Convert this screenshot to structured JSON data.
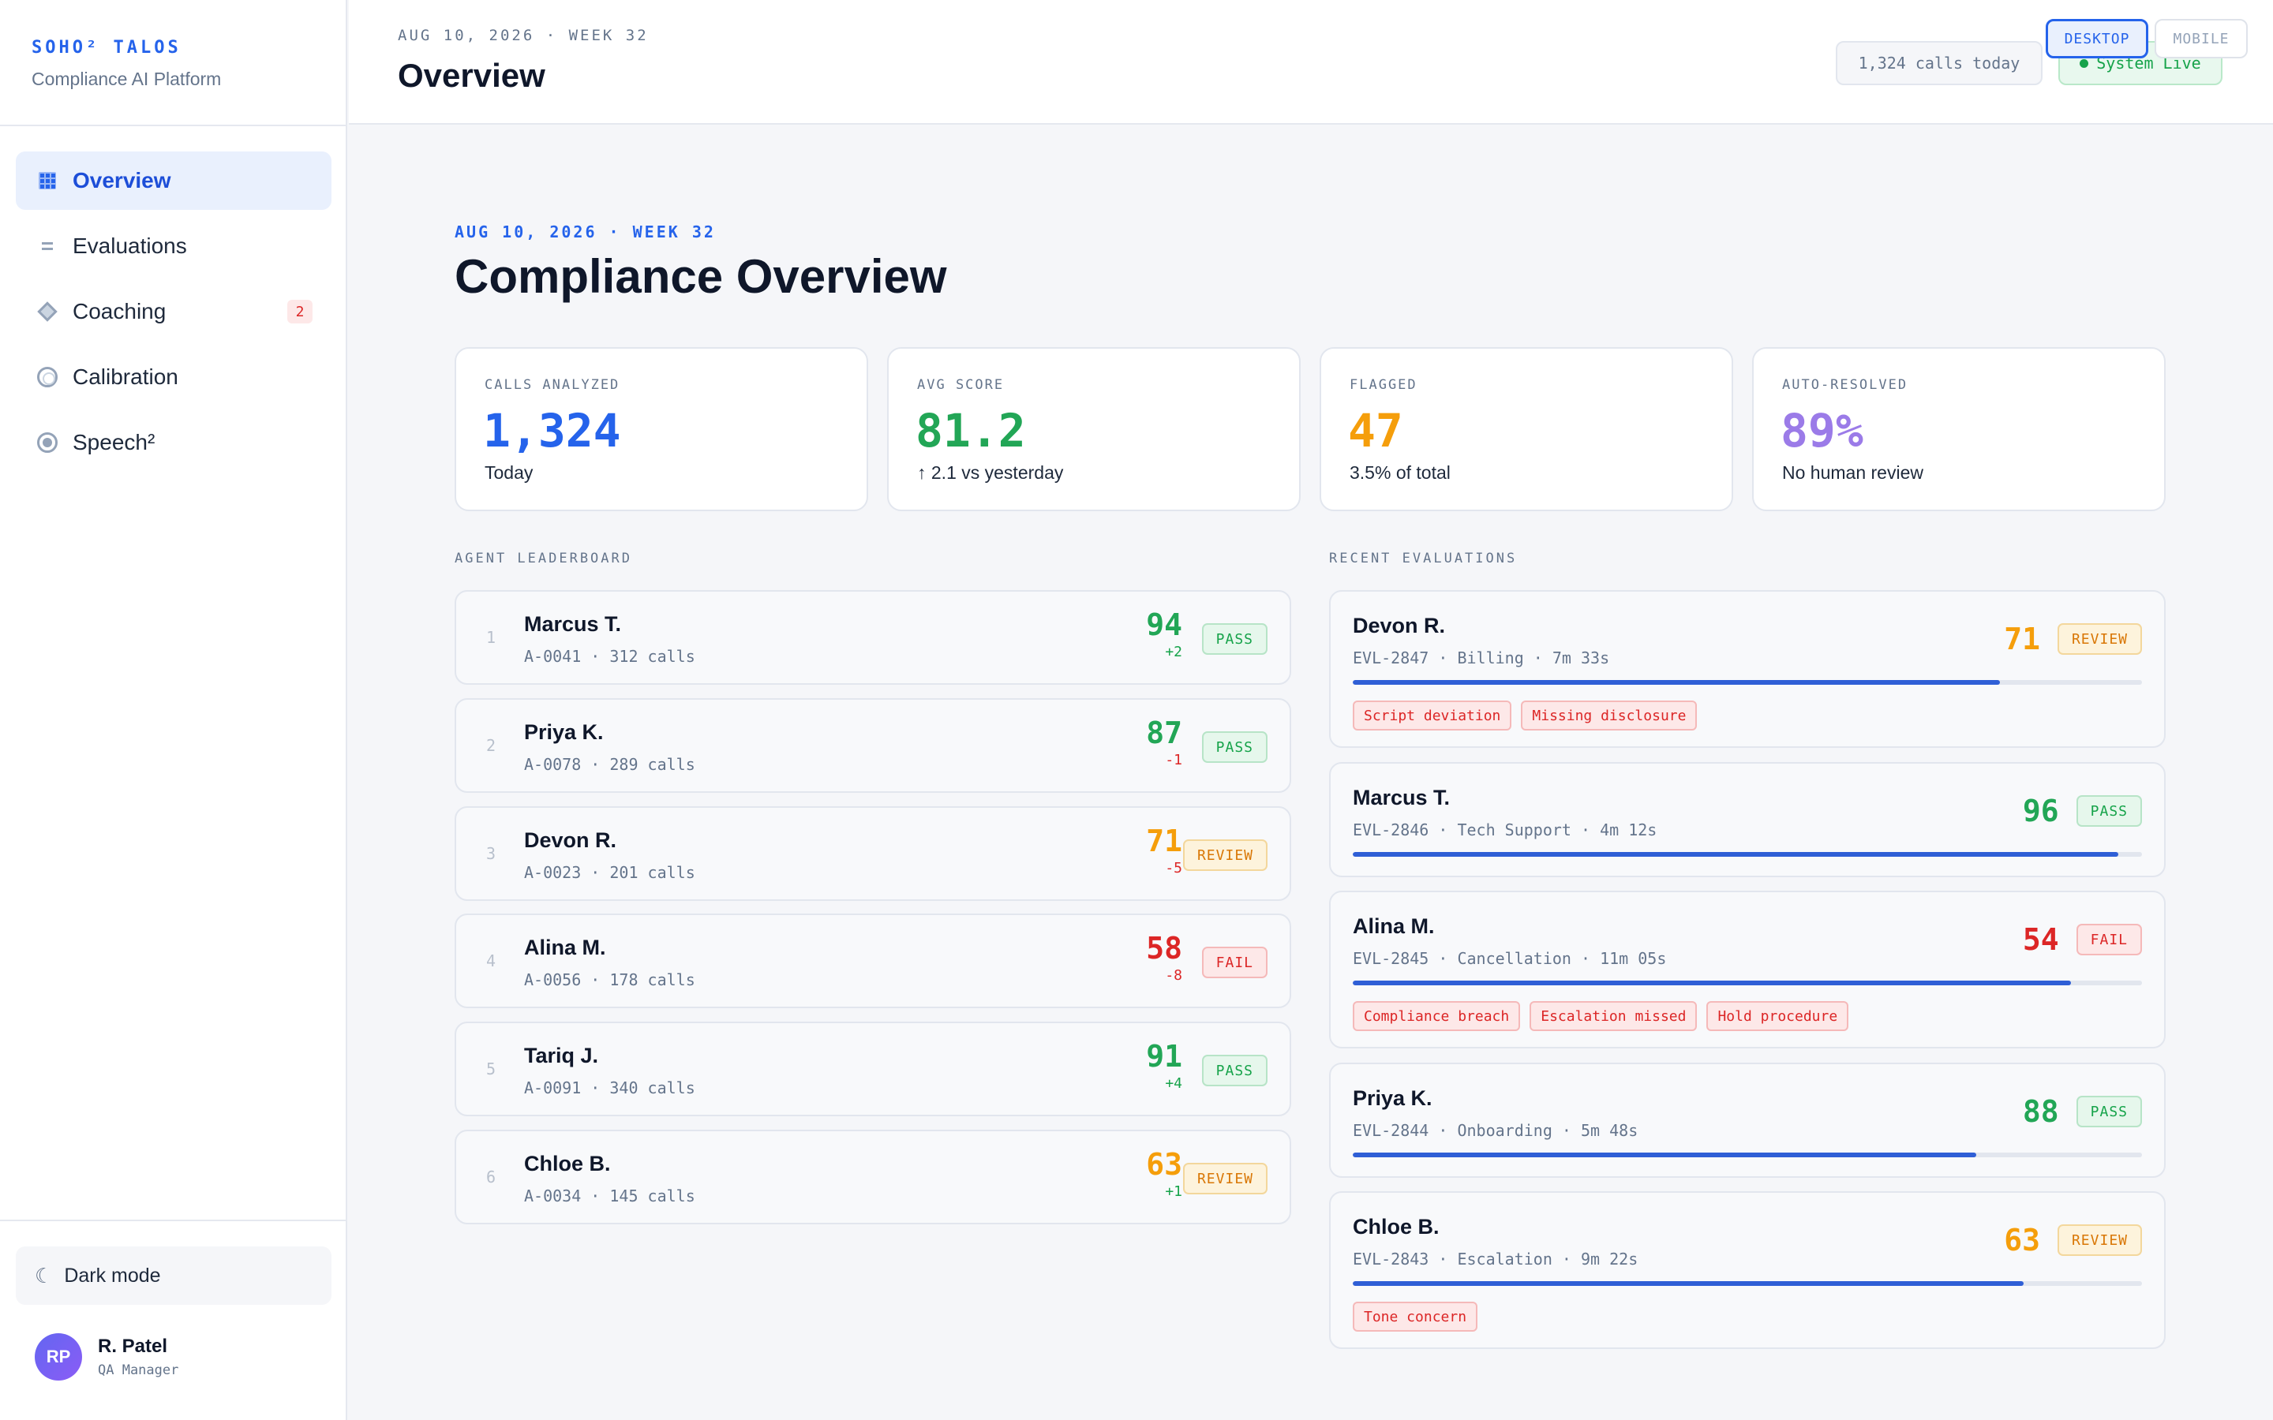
{
  "brand": {
    "name": "SOHO² TALOS",
    "subtitle": "Compliance AI Platform"
  },
  "sidebar": {
    "items": [
      {
        "label": "Overview",
        "icon": "grid-icon",
        "active": true
      },
      {
        "label": "Evaluations",
        "icon": "list-icon"
      },
      {
        "label": "Coaching",
        "icon": "diamond-icon",
        "badge": "2"
      },
      {
        "label": "Calibration",
        "icon": "ring-icon"
      },
      {
        "label": "Speech²",
        "icon": "dot-circle-icon"
      }
    ],
    "dark_mode_label": "Dark mode",
    "dark_mode_icon": "moon-icon",
    "user": {
      "initials": "RP",
      "name": "R. Patel",
      "role": "QA Manager"
    }
  },
  "header": {
    "date": "AUG 10, 2026 · WEEK 32",
    "title": "Overview",
    "calls_today": "1,324 calls today",
    "status": "System Live",
    "view_toggle": {
      "desktop": "DESKTOP",
      "mobile": "MOBILE",
      "selected": "DESKTOP"
    }
  },
  "main": {
    "date": "AUG 10, 2026 · WEEK 32",
    "title": "Compliance Overview",
    "stats": [
      {
        "label": "CALLS ANALYZED",
        "value": "1,324",
        "sub": "Today",
        "color": "#2563eb"
      },
      {
        "label": "AVG SCORE",
        "value": "81.2",
        "sub": "↑ 2.1 vs yesterday",
        "color": "#22a656"
      },
      {
        "label": "FLAGGED",
        "value": "47",
        "sub": "3.5% of total",
        "color": "#f59e0b"
      },
      {
        "label": "AUTO-RESOLVED",
        "value": "89%",
        "sub": "No human review",
        "color": "#9b7be8"
      }
    ],
    "leaderboard_label": "AGENT LEADERBOARD",
    "leaderboard": [
      {
        "rank": "1",
        "name": "Marcus T.",
        "meta": "A-0041 · 312 calls",
        "score": "94",
        "delta": "+2",
        "status": "PASS"
      },
      {
        "rank": "2",
        "name": "Priya K.",
        "meta": "A-0078 · 289 calls",
        "score": "87",
        "delta": "-1",
        "status": "PASS"
      },
      {
        "rank": "3",
        "name": "Devon R.",
        "meta": "A-0023 · 201 calls",
        "score": "71",
        "delta": "-5",
        "status": "REVIEW"
      },
      {
        "rank": "4",
        "name": "Alina M.",
        "meta": "A-0056 · 178 calls",
        "score": "58",
        "delta": "-8",
        "status": "FAIL"
      },
      {
        "rank": "5",
        "name": "Tariq J.",
        "meta": "A-0091 · 340 calls",
        "score": "91",
        "delta": "+4",
        "status": "PASS"
      },
      {
        "rank": "6",
        "name": "Chloe B.",
        "meta": "A-0034 · 145 calls",
        "score": "63",
        "delta": "+1",
        "status": "REVIEW"
      }
    ],
    "evaluations_label": "RECENT EVALUATIONS",
    "evaluations": [
      {
        "name": "Devon R.",
        "meta": "EVL-2847 · Billing · 7m 33s",
        "score": "71",
        "status": "REVIEW",
        "progress": 0.82,
        "tags": [
          "Script deviation",
          "Missing disclosure"
        ]
      },
      {
        "name": "Marcus T.",
        "meta": "EVL-2846 · Tech Support · 4m 12s",
        "score": "96",
        "status": "PASS",
        "progress": 0.97,
        "tags": []
      },
      {
        "name": "Alina M.",
        "meta": "EVL-2845 · Cancellation · 11m 05s",
        "score": "54",
        "status": "FAIL",
        "progress": 0.91,
        "tags": [
          "Compliance breach",
          "Escalation missed",
          "Hold procedure"
        ]
      },
      {
        "name": "Priya K.",
        "meta": "EVL-2844 · Onboarding · 5m 48s",
        "score": "88",
        "status": "PASS",
        "progress": 0.79,
        "tags": []
      },
      {
        "name": "Chloe B.",
        "meta": "EVL-2843 · Escalation · 9m 22s",
        "score": "63",
        "status": "REVIEW",
        "progress": 0.85,
        "tags": [
          "Tone concern"
        ]
      }
    ]
  },
  "colors": {
    "accent": "#2563eb",
    "pass": "#22a656",
    "review": "#f59e0b",
    "fail": "#dc2626",
    "delta_up": "#16a34a",
    "delta_down": "#dc2626"
  }
}
